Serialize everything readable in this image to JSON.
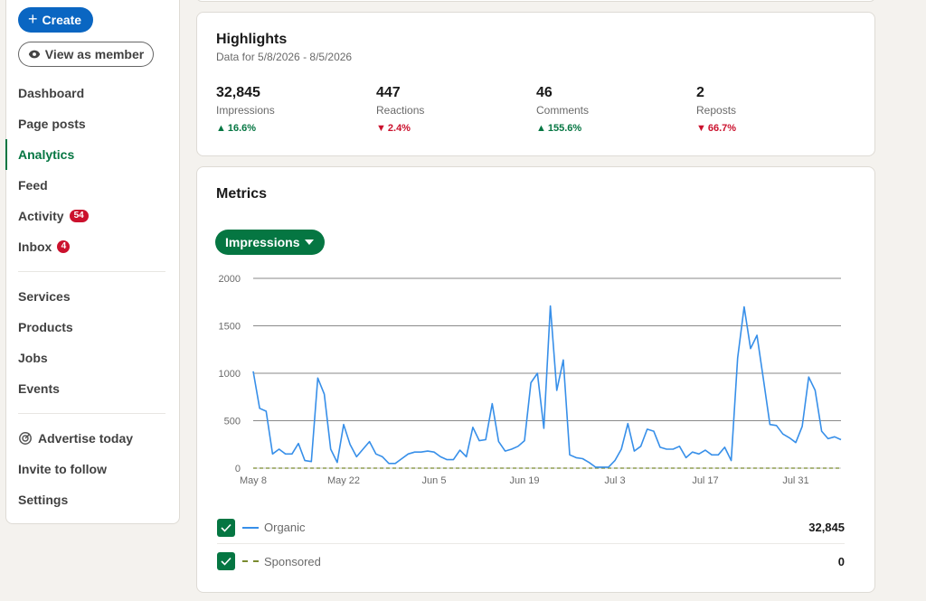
{
  "sidebar": {
    "create_label": "Create",
    "view_as_member_label": "View as member",
    "nav_primary": [
      {
        "label": "Dashboard"
      },
      {
        "label": "Page posts"
      },
      {
        "label": "Analytics",
        "active": true
      },
      {
        "label": "Feed"
      },
      {
        "label": "Activity",
        "badge": "54"
      },
      {
        "label": "Inbox",
        "badge": "4"
      }
    ],
    "nav_secondary": [
      {
        "label": "Services"
      },
      {
        "label": "Products"
      },
      {
        "label": "Jobs"
      },
      {
        "label": "Events"
      }
    ],
    "nav_tertiary": [
      {
        "label": "Advertise today",
        "icon": "target-icon"
      },
      {
        "label": "Invite to follow"
      },
      {
        "label": "Settings"
      }
    ]
  },
  "highlights": {
    "title": "Highlights",
    "date_range": "Data for 5/8/2026 - 8/5/2026",
    "stats": [
      {
        "value": "32,845",
        "label": "Impressions",
        "change": "16.6%",
        "direction": "up"
      },
      {
        "value": "447",
        "label": "Reactions",
        "change": "2.4%",
        "direction": "down"
      },
      {
        "value": "46",
        "label": "Comments",
        "change": "155.6%",
        "direction": "up"
      },
      {
        "value": "2",
        "label": "Reposts",
        "change": "66.7%",
        "direction": "down"
      }
    ]
  },
  "metrics": {
    "title": "Metrics",
    "selector_label": "Impressions",
    "legend": [
      {
        "label": "Organic",
        "total": "32,845",
        "checked": true
      },
      {
        "label": "Sponsored",
        "total": "0",
        "checked": true
      }
    ]
  },
  "colors": {
    "primary_blue": "#0a66c2",
    "analytics_green": "#057642",
    "badge_red": "#cb112d",
    "organic_line": "#378fe9",
    "sponsored_line": "#7a8b2f"
  },
  "chart_data": {
    "type": "line",
    "x_tick_labels": [
      "May 8",
      "May 22",
      "Jun 5",
      "Jun 19",
      "Jul 3",
      "Jul 17",
      "Jul 31"
    ],
    "y_tick_labels": [
      "0",
      "500",
      "1000",
      "1500",
      "2000"
    ],
    "ylim": [
      0,
      2000
    ],
    "grid": true,
    "series": [
      {
        "name": "Organic",
        "style": "solid",
        "values": [
          1020,
          630,
          600,
          150,
          200,
          150,
          150,
          260,
          80,
          70,
          950,
          780,
          200,
          60,
          460,
          250,
          120,
          200,
          280,
          150,
          120,
          50,
          50,
          100,
          150,
          170,
          170,
          180,
          170,
          120,
          90,
          90,
          190,
          120,
          430,
          290,
          300,
          680,
          280,
          180,
          200,
          230,
          290,
          900,
          1000,
          420,
          1710,
          820,
          1140,
          140,
          110,
          100,
          60,
          10,
          10,
          10,
          80,
          200,
          470,
          180,
          230,
          410,
          390,
          220,
          200,
          200,
          230,
          110,
          170,
          150,
          190,
          140,
          140,
          220,
          80,
          1160,
          1700,
          1260,
          1400,
          930,
          460,
          450,
          360,
          320,
          270,
          440,
          960,
          820,
          390,
          310,
          330,
          300
        ]
      },
      {
        "name": "Sponsored",
        "style": "dashed",
        "values": [
          0,
          0,
          0,
          0,
          0,
          0,
          0,
          0,
          0,
          0,
          0,
          0,
          0,
          0,
          0,
          0,
          0,
          0,
          0,
          0,
          0,
          0,
          0,
          0,
          0,
          0,
          0,
          0,
          0,
          0,
          0,
          0,
          0,
          0,
          0,
          0,
          0,
          0,
          0,
          0,
          0,
          0,
          0,
          0,
          0,
          0,
          0,
          0,
          0,
          0,
          0,
          0,
          0,
          0,
          0,
          0,
          0,
          0,
          0,
          0,
          0,
          0,
          0,
          0,
          0,
          0,
          0,
          0,
          0,
          0,
          0,
          0,
          0,
          0,
          0,
          0,
          0,
          0,
          0,
          0,
          0,
          0,
          0,
          0,
          0,
          0,
          0,
          0,
          0,
          0,
          0,
          0
        ]
      }
    ]
  }
}
